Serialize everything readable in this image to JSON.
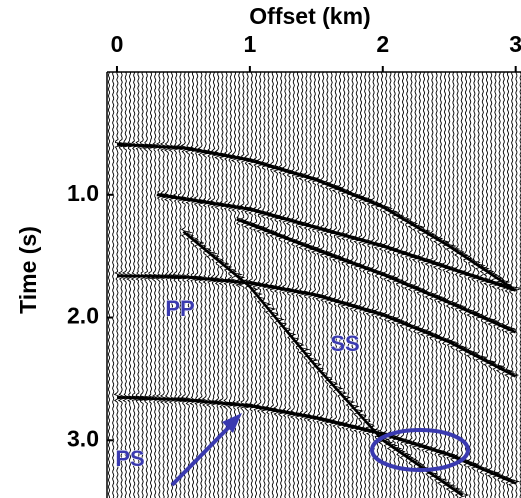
{
  "chart_data": {
    "type": "wiggle",
    "x_label": "Offset (km)",
    "y_label": "Time (s)",
    "xlim": [
      -0.075,
      3.04
    ],
    "xticks": [
      0,
      1,
      2,
      3
    ],
    "ylim": [
      0,
      3.47
    ],
    "yticks": [
      {
        "value": 1,
        "label": "1.0"
      },
      {
        "value": 2,
        "label": "2.0"
      },
      {
        "value": 3,
        "label": "3.0"
      }
    ],
    "color": "#000000",
    "annotation_color": "#3a3ab0",
    "series": [
      {
        "x": [
          0,
          0.5,
          1,
          1.5,
          2,
          2.5,
          3
        ],
        "values": [
          0.59,
          0.62,
          0.72,
          0.88,
          1.1,
          1.42,
          1.78
        ]
      },
      {
        "x": [
          0.3,
          1,
          1.5,
          2,
          2.5,
          3
        ],
        "values": [
          1.0,
          1.12,
          1.27,
          1.42,
          1.6,
          1.78
        ]
      },
      {
        "x": [
          0.9,
          1.5,
          2,
          2.5,
          3
        ],
        "values": [
          1.2,
          1.45,
          1.65,
          1.88,
          2.12
        ]
      },
      {
        "x": [
          0,
          0.5,
          1,
          1.5,
          2,
          2.5,
          3
        ],
        "values": [
          1.66,
          1.67,
          1.72,
          1.82,
          1.98,
          2.2,
          2.48
        ]
      },
      {
        "x": [
          0.5,
          1,
          1.5,
          2,
          2.6
        ],
        "values": [
          1.3,
          1.75,
          2.4,
          3.0,
          3.45
        ]
      },
      {
        "x": [
          0,
          0.5,
          1,
          1.5,
          2,
          2.5,
          3
        ],
        "values": [
          2.65,
          2.67,
          2.72,
          2.82,
          2.95,
          3.12,
          3.35
        ]
      }
    ],
    "annotations": [
      "PP",
      "SS",
      "PS"
    ]
  }
}
